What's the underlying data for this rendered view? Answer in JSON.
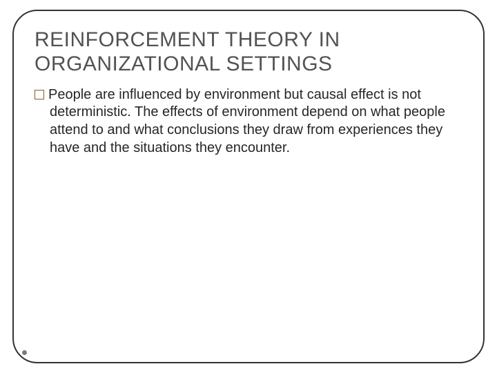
{
  "slide": {
    "title": "REINFORCEMENT THEORY IN ORGANIZATIONAL SETTINGS",
    "title_color": "#525252",
    "title_fontsize": 30,
    "body_text": "People are influenced by environment but causal effect is not deterministic. The effects of environment depend on what people attend to and what conclusions they draw from experiences they have and the situations they encounter.",
    "body_color": "#262626",
    "body_fontsize": 20,
    "bullet_style": "hollow-square",
    "bullet_border_color": "#8a5a2a",
    "frame_border_color": "#333333",
    "frame_border_radius": 36,
    "background_color": "#ffffff",
    "page_indicator_color": "#7a7a7a"
  }
}
